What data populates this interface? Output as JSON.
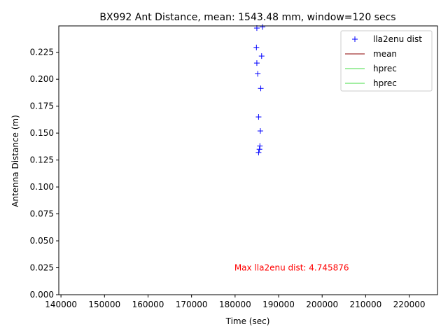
{
  "chart_data": {
    "type": "scatter",
    "title": "BX992 Ant Distance, mean: 1543.48 mm, window=120 secs",
    "xlabel": "Time (sec)",
    "ylabel": "Antenna Distance (m)",
    "xlim": [
      139500,
      226500
    ],
    "ylim": [
      0.0,
      0.2495
    ],
    "xticks": [
      140000,
      150000,
      160000,
      170000,
      180000,
      190000,
      200000,
      210000,
      220000
    ],
    "xtick_labels": [
      "140000",
      "150000",
      "160000",
      "170000",
      "180000",
      "190000",
      "200000",
      "210000",
      "220000"
    ],
    "yticks": [
      0.0,
      0.025,
      0.05,
      0.075,
      0.1,
      0.125,
      0.15,
      0.175,
      0.2,
      0.225
    ],
    "ytick_labels": [
      "0.000",
      "0.025",
      "0.050",
      "0.075",
      "0.100",
      "0.125",
      "0.150",
      "0.175",
      "0.200",
      "0.225"
    ],
    "grid": false,
    "legend_position": "top-right",
    "series": [
      {
        "name": "lla2enu dist",
        "marker": "+",
        "color": "#0000ff",
        "x": [
          185000,
          186300,
          184900,
          186100,
          185000,
          185200,
          185900,
          185400,
          185800,
          185700,
          185600,
          185400
        ],
        "y": [
          0.2475,
          0.2485,
          0.2295,
          0.2215,
          0.215,
          0.205,
          0.1915,
          0.165,
          0.152,
          0.138,
          0.135,
          0.132
        ]
      },
      {
        "name": "mean",
        "marker": "line",
        "color": "#8b0000",
        "x": [],
        "y": []
      },
      {
        "name": "hprec",
        "marker": "line",
        "color": "#44dd44",
        "x": [],
        "y": []
      },
      {
        "name": "hprec",
        "marker": "line",
        "color": "#44dd44",
        "x": [],
        "y": []
      }
    ],
    "annotations": [
      {
        "text": "Max lla2enu dist: 4.745876",
        "color": "#ff0000",
        "x": 193000,
        "y": 0.0225
      }
    ]
  }
}
